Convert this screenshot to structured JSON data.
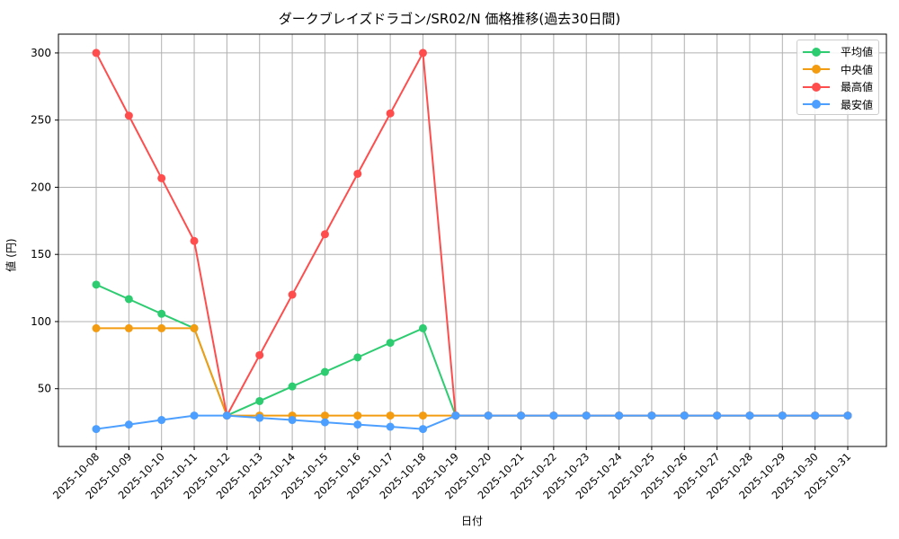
{
  "chart_data": {
    "type": "line",
    "title": "ダークブレイズドラゴン/SR02/N 価格推移(過去30日間)",
    "xlabel": "日付",
    "ylabel": "値 (円)",
    "ylim": [
      7,
      314
    ],
    "yticks": [
      50,
      100,
      150,
      200,
      250,
      300
    ],
    "grid": true,
    "legend_position": "upper right",
    "categories": [
      "2025-10-08",
      "2025-10-09",
      "2025-10-10",
      "2025-10-11",
      "2025-10-12",
      "2025-10-13",
      "2025-10-14",
      "2025-10-15",
      "2025-10-16",
      "2025-10-17",
      "2025-10-18",
      "2025-10-19",
      "2025-10-20",
      "2025-10-21",
      "2025-10-22",
      "2025-10-23",
      "2025-10-24",
      "2025-10-25",
      "2025-10-26",
      "2025-10-27",
      "2025-10-28",
      "2025-10-29",
      "2025-10-30",
      "2025-10-31"
    ],
    "series": [
      {
        "name": "平均値",
        "color": "#2ecc71",
        "values": [
          127.5,
          116.7,
          105.8,
          95,
          30,
          40.8,
          51.7,
          62.5,
          73.3,
          84.2,
          95,
          30,
          30,
          30,
          30,
          30,
          30,
          30,
          30,
          30,
          30,
          30,
          30,
          30
        ]
      },
      {
        "name": "中央値",
        "color": "#f39c12",
        "values": [
          95,
          95,
          95,
          95,
          30,
          30,
          30,
          30,
          30,
          30,
          30,
          30,
          30,
          30,
          30,
          30,
          30,
          30,
          30,
          30,
          30,
          30,
          30,
          30
        ]
      },
      {
        "name": "最高値",
        "color": "#ff4d4d",
        "values": [
          300,
          253.3,
          206.7,
          160,
          30,
          75,
          120,
          165,
          210,
          255,
          300,
          30,
          30,
          30,
          30,
          30,
          30,
          30,
          30,
          30,
          30,
          30,
          30,
          30
        ]
      },
      {
        "name": "最安値",
        "color": "#4d9fff",
        "values": [
          20,
          23.3,
          26.7,
          30,
          30,
          28.3,
          26.7,
          25,
          23.3,
          21.7,
          20,
          30,
          30,
          30,
          30,
          30,
          30,
          30,
          30,
          30,
          30,
          30,
          30,
          30
        ]
      }
    ]
  }
}
